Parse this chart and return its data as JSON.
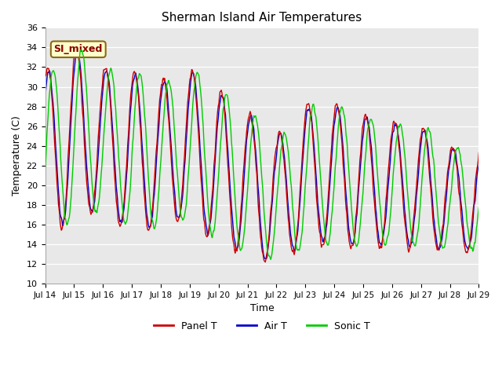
{
  "title": "Sherman Island Air Temperatures",
  "xlabel": "Time",
  "ylabel": "Temperature (C)",
  "annotation": "SI_mixed",
  "ylim": [
    10,
    36
  ],
  "yticks": [
    10,
    12,
    14,
    16,
    18,
    20,
    22,
    24,
    26,
    28,
    30,
    32,
    34,
    36
  ],
  "colors": {
    "panel": "#cc0000",
    "air": "#0000cc",
    "sonic": "#00cc00",
    "bg": "#e8e8e8"
  },
  "legend": [
    "Panel T",
    "Air T",
    "Sonic T"
  ],
  "peak_temps": [
    31.8,
    34.2,
    32.0,
    31.8,
    30.8,
    31.8,
    29.7,
    27.5,
    25.2,
    28.3,
    28.3,
    27.2,
    26.5,
    26.0,
    24.0
  ],
  "trough_temps": [
    13.9,
    17.0,
    17.0,
    14.9,
    15.8,
    16.5,
    13.5,
    13.0,
    11.8,
    14.0,
    13.8,
    13.5,
    13.8,
    13.5,
    13.2
  ],
  "sonic_phase_lead": 0.18,
  "panel_air_phase_diff": 0.03,
  "num_points_per_day": 48
}
